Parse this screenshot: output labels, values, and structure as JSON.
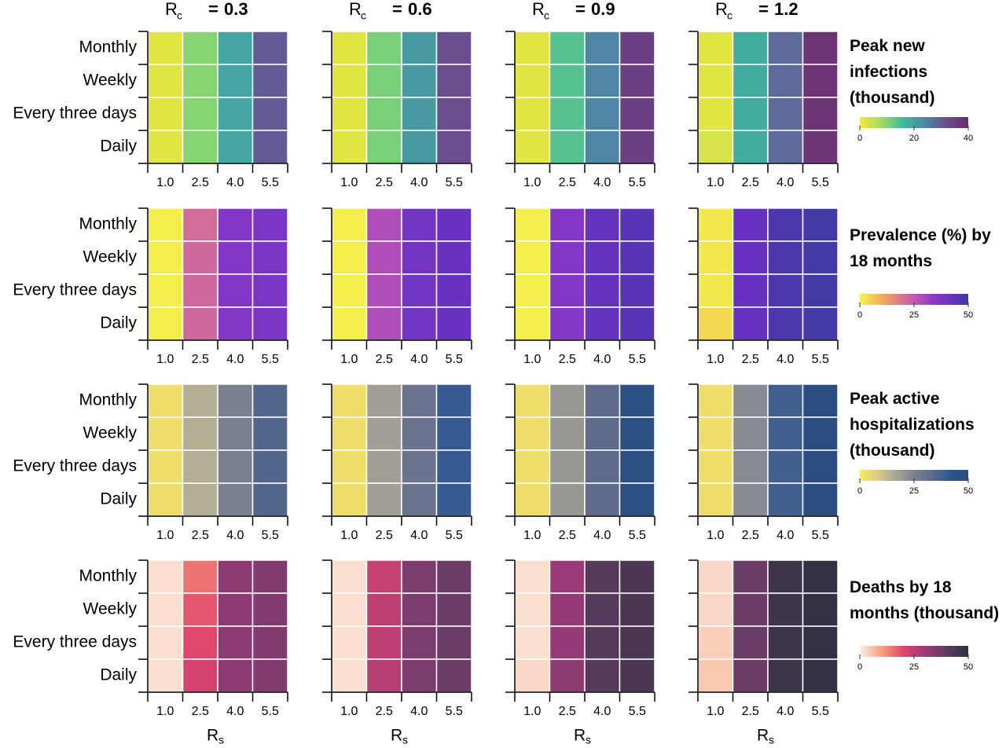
{
  "chart_data": {
    "type": "heatmap",
    "col_title": {
      "main": "R",
      "sub": "c",
      "sep": "="
    },
    "col_values": [
      0.3,
      0.6,
      0.9,
      1.2
    ],
    "x_title": {
      "main": "R",
      "sub": "s"
    },
    "x_categories": [
      "1.0",
      "2.5",
      "4.0",
      "5.5"
    ],
    "y_categories": [
      "Monthly",
      "Weekly",
      "Every three days",
      "Daily"
    ],
    "rows": [
      {
        "title": "Peak new infections (thousand)",
        "colors": [
          "#f7e73a",
          "#9edd62",
          "#3fb8a0",
          "#4f86a4",
          "#6a4d8f",
          "#6c2a6c"
        ],
        "clim": [
          0,
          40
        ],
        "cticks": [
          0,
          20,
          40
        ],
        "panels": [
          [
            [
              2,
              10,
              19,
              30
            ],
            [
              2,
              10,
              19,
              30
            ],
            [
              2,
              10,
              19,
              30
            ],
            [
              2,
              10,
              19,
              30
            ]
          ],
          [
            [
              2,
              11,
              21,
              32
            ],
            [
              2,
              11,
              21,
              32
            ],
            [
              2,
              11,
              21,
              32
            ],
            [
              2,
              11,
              21,
              32
            ]
          ],
          [
            [
              2,
              14,
              24,
              35
            ],
            [
              2,
              14,
              24,
              35
            ],
            [
              2,
              14,
              24,
              35
            ],
            [
              2,
              14,
              24,
              35
            ]
          ],
          [
            [
              2,
              18,
              28,
              38
            ],
            [
              2,
              18,
              28,
              38
            ],
            [
              2,
              18,
              28,
              38
            ],
            [
              3,
              18,
              28,
              38
            ]
          ]
        ]
      },
      {
        "title": "Prevalence (%) by 18 months",
        "colors": [
          "#f2f64a",
          "#f7b75a",
          "#e4817f",
          "#c25ab0",
          "#8f3ac8",
          "#6a32c2",
          "#3d3aa0"
        ],
        "clim": [
          0,
          50
        ],
        "cticks": [
          0,
          25,
          50
        ],
        "panels": [
          [
            [
              1,
              21,
              36,
              38
            ],
            [
              1,
              22,
              36,
              38
            ],
            [
              1,
              22,
              36,
              38
            ],
            [
              1,
              22,
              36,
              38
            ]
          ],
          [
            [
              1,
              28,
              40,
              42
            ],
            [
              1,
              28,
              40,
              42
            ],
            [
              1,
              28,
              40,
              42
            ],
            [
              1,
              28,
              40,
              42
            ]
          ],
          [
            [
              1,
              36,
              43,
              45
            ],
            [
              1,
              36,
              43,
              45
            ],
            [
              1,
              36,
              43,
              45
            ],
            [
              1,
              36,
              43,
              45
            ]
          ],
          [
            [
              2,
              42,
              47,
              49
            ],
            [
              2,
              42,
              47,
              49
            ],
            [
              2,
              42,
              47,
              49
            ],
            [
              4,
              42,
              47,
              49
            ]
          ]
        ]
      },
      {
        "title": "Peak active hospitalizations (thousand)",
        "colors": [
          "#fbe95e",
          "#d9cb86",
          "#a8a596",
          "#7d8190",
          "#5d6b8c",
          "#2d5792",
          "#2b4a7a"
        ],
        "clim": [
          0,
          50
        ],
        "cticks": [
          0,
          25,
          50
        ],
        "panels": [
          [
            [
              3,
              15,
              26,
              35
            ],
            [
              3,
              15,
              26,
              35
            ],
            [
              3,
              15,
              26,
              35
            ],
            [
              3,
              15,
              26,
              35
            ]
          ],
          [
            [
              3,
              18,
              30,
              40
            ],
            [
              3,
              18,
              30,
              40
            ],
            [
              3,
              18,
              30,
              40
            ],
            [
              3,
              18,
              30,
              40
            ]
          ],
          [
            [
              3,
              20,
              33,
              47
            ],
            [
              3,
              20,
              33,
              47
            ],
            [
              3,
              20,
              33,
              47
            ],
            [
              3,
              20,
              33,
              47
            ]
          ],
          [
            [
              3,
              23,
              38,
              48
            ],
            [
              3,
              23,
              38,
              48
            ],
            [
              3,
              23,
              38,
              48
            ],
            [
              3,
              23,
              38,
              48
            ]
          ]
        ]
      },
      {
        "title": "Deaths by 18 months (thousand)",
        "colors": [
          "#fbeee6",
          "#f6a17c",
          "#e2466c",
          "#9a3a78",
          "#5e3d62",
          "#2f2f40"
        ],
        "clim": [
          0,
          50
        ],
        "cticks": [
          0,
          25,
          50
        ],
        "panels": [
          [
            [
              2,
              15,
              32,
              34
            ],
            [
              2,
              18,
              32,
              34
            ],
            [
              2,
              20,
              32,
              34
            ],
            [
              2,
              22,
              32,
              34
            ]
          ],
          [
            [
              2,
              24,
              35,
              38
            ],
            [
              2,
              25,
              35,
              38
            ],
            [
              2,
              25,
              35,
              38
            ],
            [
              2,
              26,
              35,
              38
            ]
          ],
          [
            [
              2,
              30,
              42,
              44
            ],
            [
              2,
              31,
              42,
              44
            ],
            [
              2,
              31,
              42,
              44
            ],
            [
              3,
              32,
              42,
              44
            ]
          ],
          [
            [
              3,
              38,
              47,
              49
            ],
            [
              3,
              38,
              47,
              49
            ],
            [
              4,
              38,
              47,
              49
            ],
            [
              5,
              38,
              47,
              49
            ]
          ]
        ]
      }
    ]
  }
}
